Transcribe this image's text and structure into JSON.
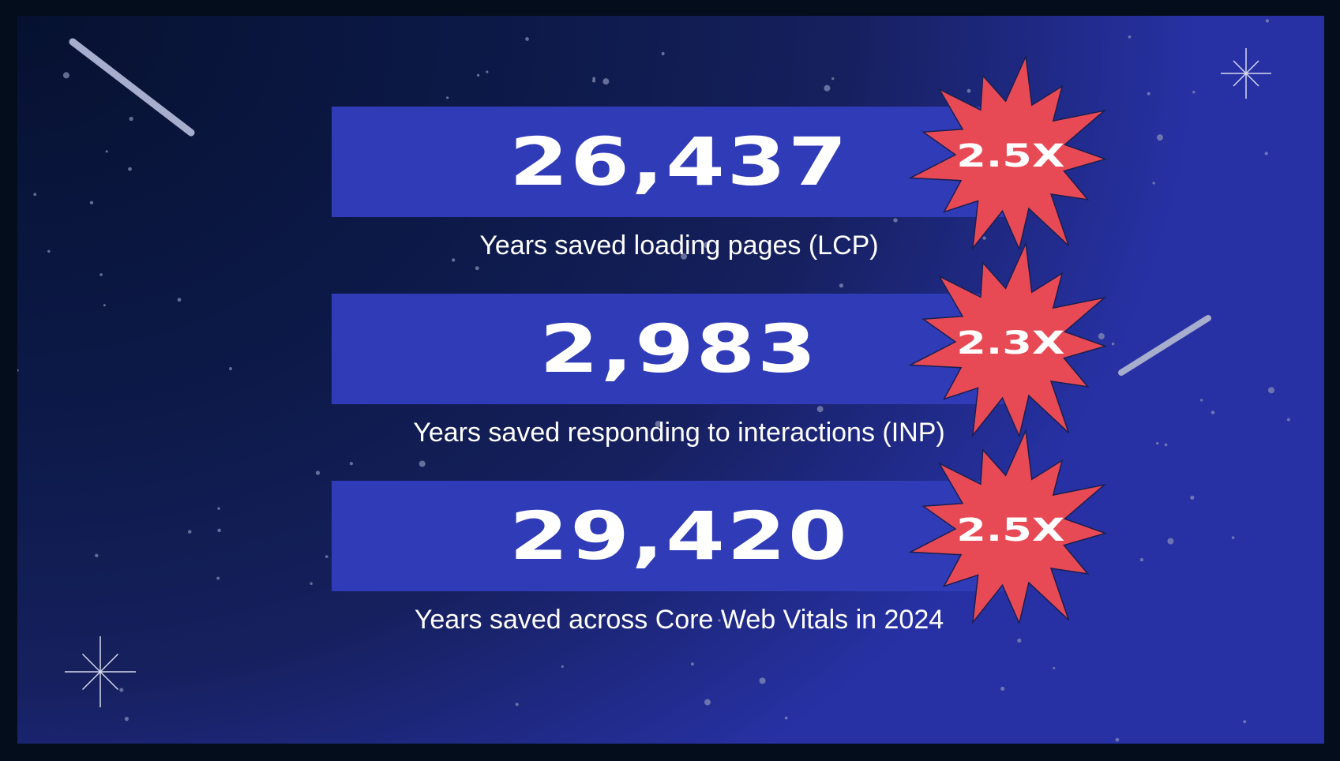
{
  "colors": {
    "bar": "#303bb8",
    "burst": "#e84a55",
    "background": "#0d1a4a",
    "frame": "#030d1c"
  },
  "stats": [
    {
      "value": "26,437",
      "label": "Years saved loading pages (LCP)",
      "multiplier": "2.5X"
    },
    {
      "value": "2,983",
      "label": "Years saved responding to interactions (INP)",
      "multiplier": "2.3X"
    },
    {
      "value": "29,420",
      "label": "Years saved across Core Web Vitals in 2024",
      "multiplier": "2.5X"
    }
  ]
}
